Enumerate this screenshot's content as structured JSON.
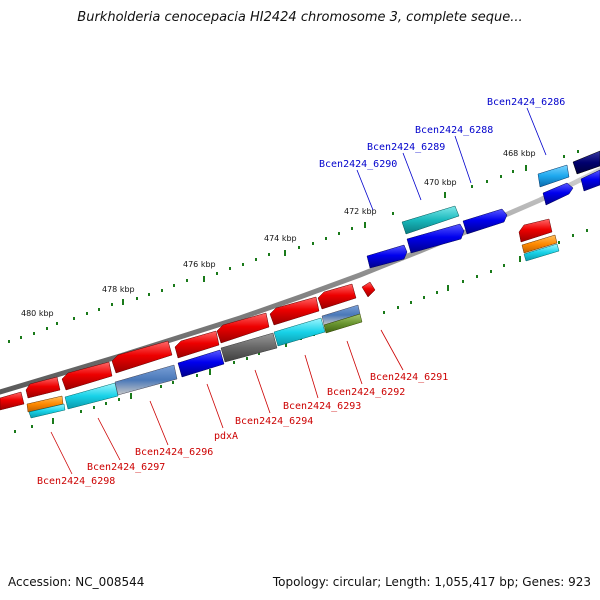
{
  "title": "Burkholderia cenocepacia HI2424 chromosome 3, complete seque...",
  "footer": {
    "accession": "Accession: NC_008544",
    "stats": "Topology: circular; Length: 1,055,417 bp; Genes: 923"
  },
  "colors": {
    "backbone": "#808080",
    "tick": "#1a7a1a",
    "label_reverse": "#cc0000",
    "label_forward": "#0000cc"
  },
  "kbp_labels": [
    "480 kbp",
    "478 kbp",
    "476 kbp",
    "474 kbp",
    "472 kbp",
    "470 kbp",
    "468 kbp"
  ],
  "genes_forward": [
    "Bcen2424_6286",
    "Bcen2424_6288",
    "Bcen2424_6289",
    "Bcen2424_6290"
  ],
  "genes_reverse": [
    "Bcen2424_6291",
    "Bcen2424_6292",
    "Bcen2424_6293",
    "Bcen2424_6294",
    "pdxA",
    "Bcen2424_6296",
    "Bcen2424_6297",
    "Bcen2424_6298"
  ]
}
